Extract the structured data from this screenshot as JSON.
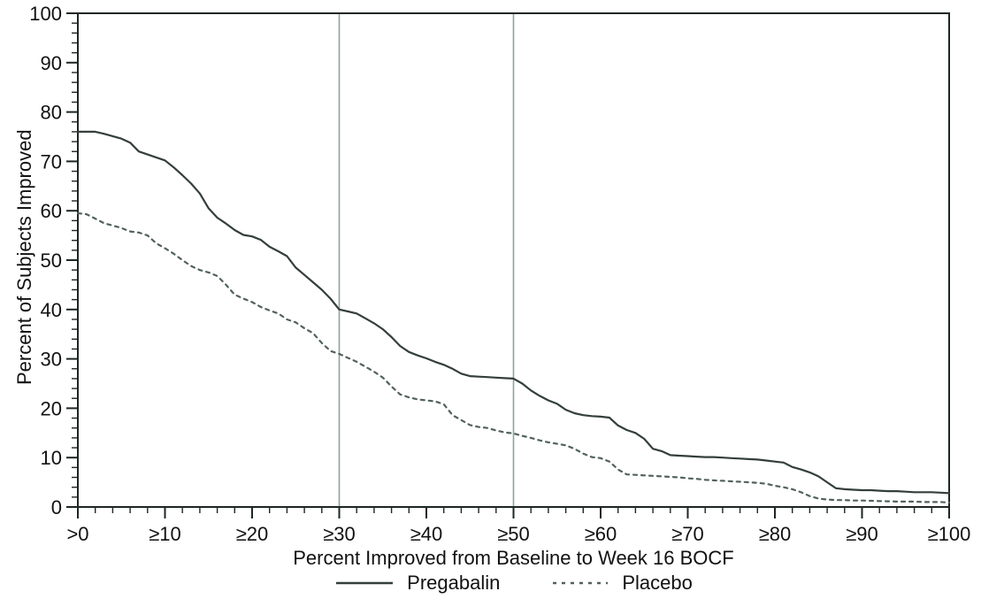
{
  "chart_data": {
    "type": "line",
    "title": "",
    "xlabel": "Percent Improved from Baseline to Week 16 BOCF",
    "ylabel": "Percent of Subjects Improved",
    "xlim": [
      0,
      100
    ],
    "ylim": [
      0,
      100
    ],
    "x_tick_values": [
      0,
      10,
      20,
      30,
      40,
      50,
      60,
      70,
      80,
      90,
      100
    ],
    "x_tick_labels": [
      ">0",
      "≥10",
      "≥20",
      "≥30",
      "≥40",
      "≥50",
      "≥60",
      "≥70",
      "≥80",
      "≥90",
      "≥100"
    ],
    "y_tick_values": [
      0,
      10,
      20,
      30,
      40,
      50,
      60,
      70,
      80,
      90,
      100
    ],
    "y_tick_labels": [
      "0",
      "10",
      "20",
      "30",
      "40",
      "50",
      "60",
      "70",
      "80",
      "90",
      "100"
    ],
    "minor_tick_step": 2,
    "grid": false,
    "reference_lines_x": [
      30,
      50
    ],
    "legend_position": "bottom",
    "colors": {
      "pregabalin": "#343f3a",
      "placebo": "#52625c",
      "reference_line": "#8fa29a",
      "axis": "#1d2724",
      "text": "#111111"
    },
    "series": [
      {
        "name": "Pregabalin",
        "style": "solid",
        "points": [
          [
            0,
            76
          ],
          [
            1,
            76
          ],
          [
            2,
            76
          ],
          [
            3,
            75.6
          ],
          [
            4,
            75.1
          ],
          [
            5,
            74.6
          ],
          [
            6,
            73.8
          ],
          [
            7,
            72
          ],
          [
            8,
            71.4
          ],
          [
            9,
            70.8
          ],
          [
            10,
            70.2
          ],
          [
            11,
            68.8
          ],
          [
            12,
            67.2
          ],
          [
            13,
            65.5
          ],
          [
            14,
            63.5
          ],
          [
            15,
            60.5
          ],
          [
            16,
            58.6
          ],
          [
            17,
            57.4
          ],
          [
            18,
            56.1
          ],
          [
            19,
            55.1
          ],
          [
            20,
            54.8
          ],
          [
            21,
            54.1
          ],
          [
            22,
            52.7
          ],
          [
            23,
            51.8
          ],
          [
            24,
            50.8
          ],
          [
            25,
            48.5
          ],
          [
            26,
            47
          ],
          [
            27,
            45.5
          ],
          [
            28,
            44
          ],
          [
            29,
            42.2
          ],
          [
            30,
            40
          ],
          [
            31,
            39.6
          ],
          [
            32,
            39.2
          ],
          [
            33,
            38.2
          ],
          [
            34,
            37.2
          ],
          [
            35,
            36
          ],
          [
            36,
            34.4
          ],
          [
            37,
            32.6
          ],
          [
            38,
            31.4
          ],
          [
            39,
            30.7
          ],
          [
            40,
            30.1
          ],
          [
            41,
            29.4
          ],
          [
            42,
            28.8
          ],
          [
            43,
            28
          ],
          [
            44,
            27
          ],
          [
            45,
            26.5
          ],
          [
            46,
            26.4
          ],
          [
            47,
            26.3
          ],
          [
            48,
            26.2
          ],
          [
            49,
            26.1
          ],
          [
            50,
            26
          ],
          [
            51,
            25
          ],
          [
            52,
            23.6
          ],
          [
            53,
            22.5
          ],
          [
            54,
            21.6
          ],
          [
            55,
            20.9
          ],
          [
            56,
            19.7
          ],
          [
            57,
            19
          ],
          [
            58,
            18.6
          ],
          [
            59,
            18.4
          ],
          [
            60,
            18.3
          ],
          [
            61,
            18.1
          ],
          [
            62,
            16.5
          ],
          [
            63,
            15.6
          ],
          [
            64,
            15
          ],
          [
            65,
            13.8
          ],
          [
            66,
            11.8
          ],
          [
            67,
            11.3
          ],
          [
            68,
            10.5
          ],
          [
            69,
            10.4
          ],
          [
            70,
            10.3
          ],
          [
            71,
            10.2
          ],
          [
            72,
            10.1
          ],
          [
            73,
            10.1
          ],
          [
            74,
            10
          ],
          [
            75,
            9.9
          ],
          [
            76,
            9.8
          ],
          [
            77,
            9.7
          ],
          [
            78,
            9.6
          ],
          [
            79,
            9.4
          ],
          [
            80,
            9.2
          ],
          [
            81,
            9
          ],
          [
            82,
            8.1
          ],
          [
            83,
            7.6
          ],
          [
            84,
            7
          ],
          [
            85,
            6.2
          ],
          [
            86,
            5
          ],
          [
            87,
            3.8
          ],
          [
            88,
            3.6
          ],
          [
            89,
            3.5
          ],
          [
            90,
            3.4
          ],
          [
            91,
            3.4
          ],
          [
            92,
            3.3
          ],
          [
            93,
            3.2
          ],
          [
            94,
            3.2
          ],
          [
            95,
            3.1
          ],
          [
            96,
            3
          ],
          [
            97,
            3
          ],
          [
            98,
            3
          ],
          [
            99,
            2.9
          ],
          [
            100,
            2.8
          ]
        ]
      },
      {
        "name": "Placebo",
        "style": "dashed",
        "points": [
          [
            0,
            59.5
          ],
          [
            1,
            59.3
          ],
          [
            2,
            58.4
          ],
          [
            3,
            57.5
          ],
          [
            4,
            57
          ],
          [
            5,
            56.5
          ],
          [
            6,
            55.8
          ],
          [
            7,
            55.6
          ],
          [
            8,
            55
          ],
          [
            9,
            53.4
          ],
          [
            10,
            52.4
          ],
          [
            11,
            51.3
          ],
          [
            12,
            50
          ],
          [
            13,
            48.8
          ],
          [
            14,
            48
          ],
          [
            15,
            47.5
          ],
          [
            16,
            46.8
          ],
          [
            17,
            45
          ],
          [
            18,
            43
          ],
          [
            19,
            42.2
          ],
          [
            20,
            41.5
          ],
          [
            21,
            40.5
          ],
          [
            22,
            39.8
          ],
          [
            23,
            39.2
          ],
          [
            24,
            38
          ],
          [
            25,
            37.4
          ],
          [
            26,
            36.2
          ],
          [
            27,
            35.2
          ],
          [
            28,
            33.2
          ],
          [
            29,
            31.6
          ],
          [
            30,
            31
          ],
          [
            31,
            30.2
          ],
          [
            32,
            29.4
          ],
          [
            33,
            28.4
          ],
          [
            34,
            27.4
          ],
          [
            35,
            26.2
          ],
          [
            36,
            24.4
          ],
          [
            37,
            22.8
          ],
          [
            38,
            22.2
          ],
          [
            39,
            21.8
          ],
          [
            40,
            21.6
          ],
          [
            41,
            21.4
          ],
          [
            42,
            20.8
          ],
          [
            43,
            18.6
          ],
          [
            44,
            17.6
          ],
          [
            45,
            16.6
          ],
          [
            46,
            16.2
          ],
          [
            47,
            16
          ],
          [
            48,
            15.5
          ],
          [
            49,
            15.1
          ],
          [
            50,
            14.9
          ],
          [
            51,
            14.4
          ],
          [
            52,
            14
          ],
          [
            53,
            13.5
          ],
          [
            54,
            13.1
          ],
          [
            55,
            12.8
          ],
          [
            56,
            12.5
          ],
          [
            57,
            11.8
          ],
          [
            58,
            10.8
          ],
          [
            59,
            10.1
          ],
          [
            60,
            9.9
          ],
          [
            61,
            9.2
          ],
          [
            62,
            7.6
          ],
          [
            63,
            6.6
          ],
          [
            64,
            6.5
          ],
          [
            65,
            6.4
          ],
          [
            66,
            6.3
          ],
          [
            67,
            6.2
          ],
          [
            68,
            6.1
          ],
          [
            69,
            6
          ],
          [
            70,
            5.8
          ],
          [
            71,
            5.7
          ],
          [
            72,
            5.5
          ],
          [
            73,
            5.4
          ],
          [
            74,
            5.3
          ],
          [
            75,
            5.2
          ],
          [
            76,
            5.1
          ],
          [
            77,
            5
          ],
          [
            78,
            4.9
          ],
          [
            79,
            4.7
          ],
          [
            80,
            4.3
          ],
          [
            81,
            4
          ],
          [
            82,
            3.6
          ],
          [
            83,
            3
          ],
          [
            84,
            2.2
          ],
          [
            85,
            1.7
          ],
          [
            86,
            1.5
          ],
          [
            87,
            1.4
          ],
          [
            88,
            1.4
          ],
          [
            89,
            1.3
          ],
          [
            90,
            1.3
          ],
          [
            91,
            1.25
          ],
          [
            92,
            1.2
          ],
          [
            93,
            1.15
          ],
          [
            94,
            1.1
          ],
          [
            95,
            1.1
          ],
          [
            96,
            1.1
          ],
          [
            97,
            1
          ],
          [
            98,
            1
          ],
          [
            99,
            1
          ],
          [
            100,
            0.9
          ]
        ]
      }
    ]
  }
}
